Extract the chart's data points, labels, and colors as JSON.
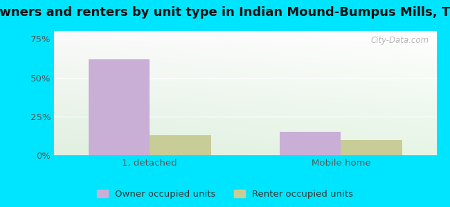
{
  "title": "Owners and renters by unit type in Indian Mound-Bumpus Mills, TN",
  "categories": [
    "1, detached",
    "Mobile home"
  ],
  "owner_values": [
    62,
    15
  ],
  "renter_values": [
    13,
    10
  ],
  "owner_color": "#c9aed6",
  "renter_color": "#c8cc96",
  "yticks": [
    0,
    25,
    50,
    75
  ],
  "ytick_labels": [
    "0%",
    "25%",
    "50%",
    "75%"
  ],
  "ylim": [
    0,
    80
  ],
  "bar_width": 0.32,
  "title_fontsize": 13,
  "tick_fontsize": 9.5,
  "legend_fontsize": 9.5,
  "outer_bg": "#00e5ff",
  "watermark": "City-Data.com",
  "bg_color_topleft": "#e8f5e2",
  "bg_color_topright": "#f5f9f5",
  "bg_color_bottomleft": "#d8eecc",
  "bg_color_bottomright": "#eef8ee"
}
